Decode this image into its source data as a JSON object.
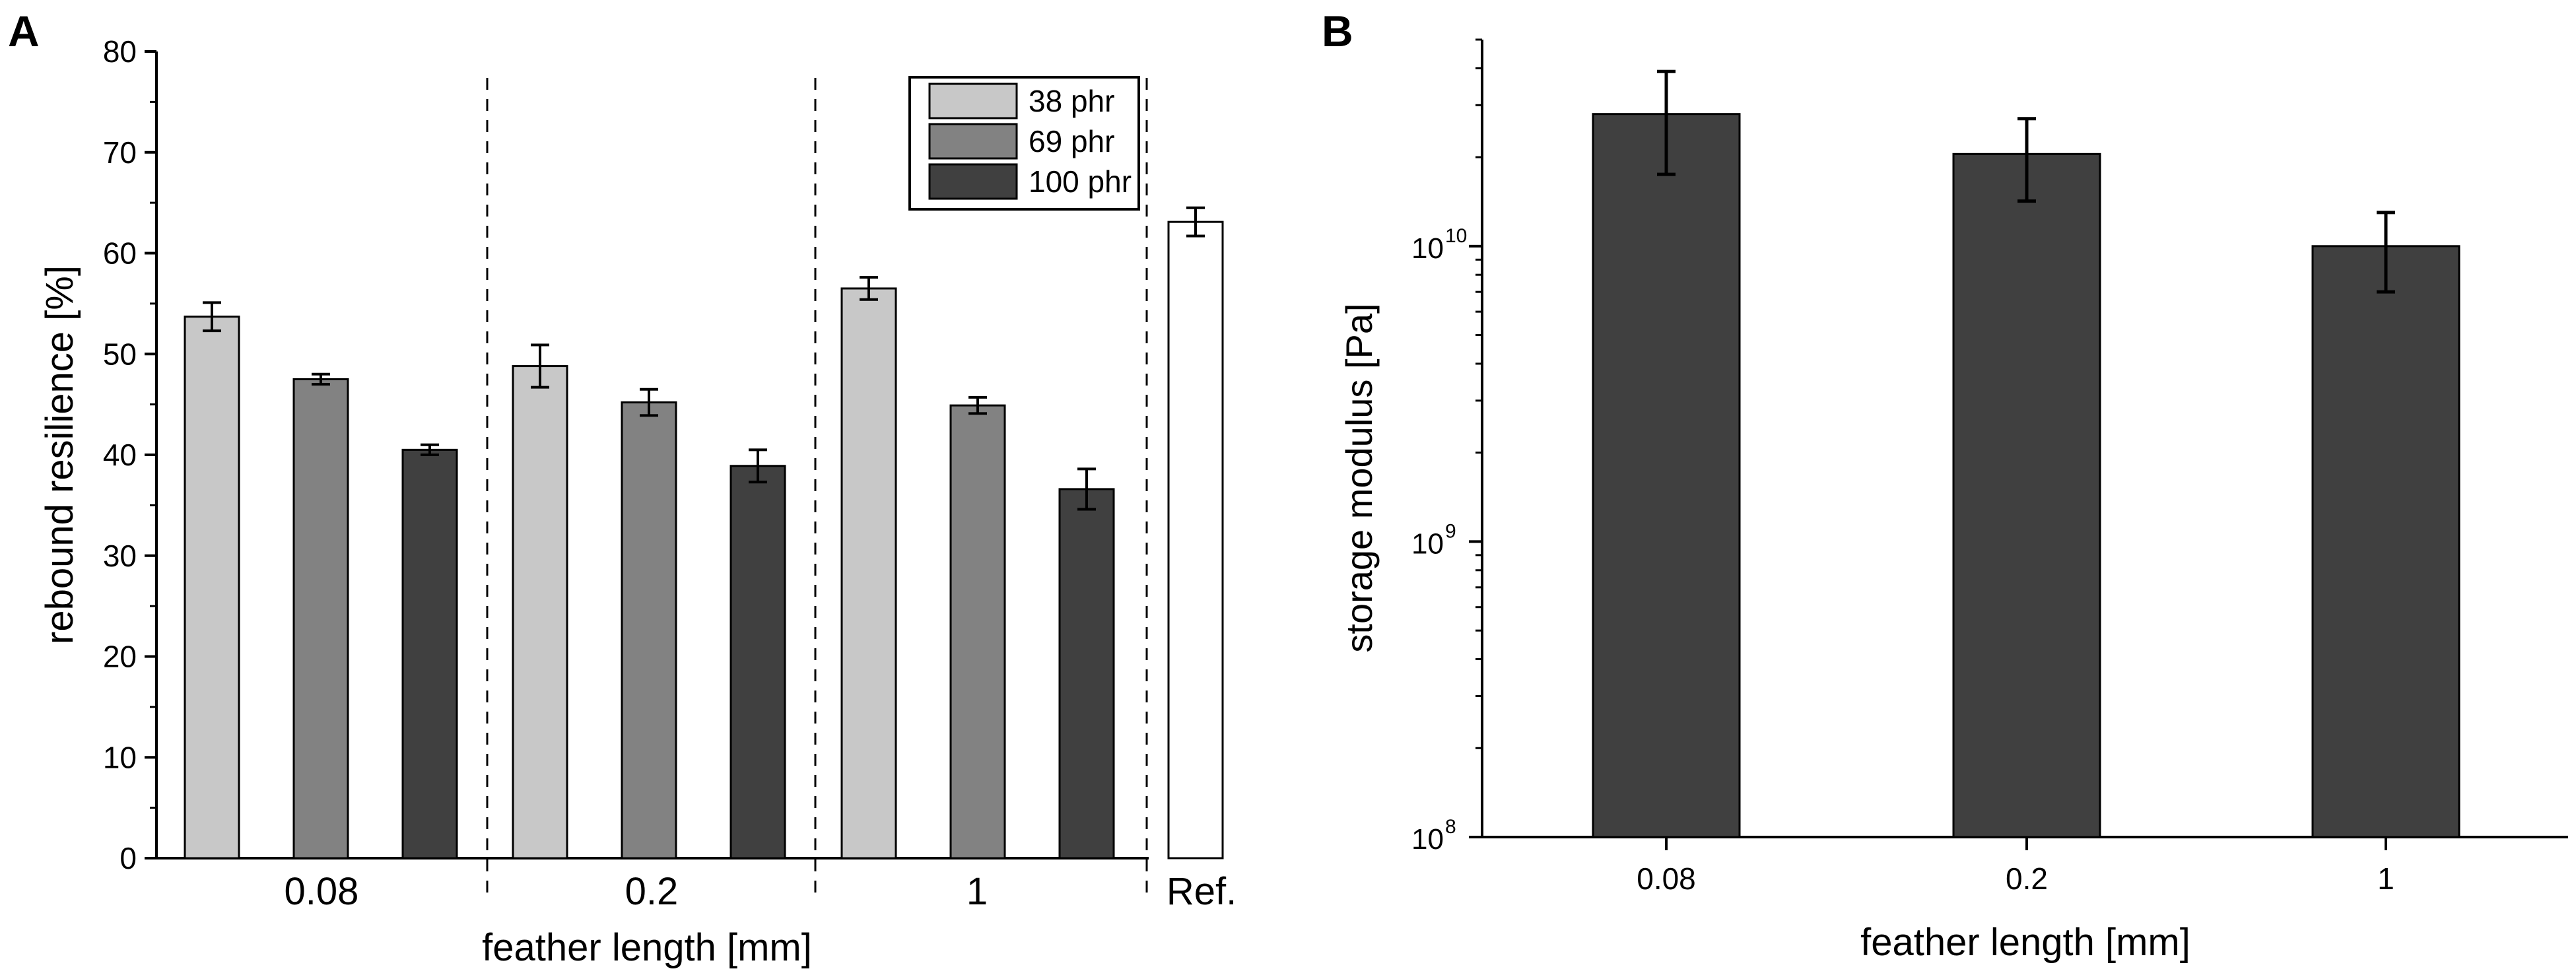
{
  "panels": {
    "a_label": "A",
    "b_label": "B"
  },
  "chart_data": [
    {
      "type": "bar",
      "panel": "A",
      "title": "",
      "xlabel": "feather length [mm]",
      "ylabel": "rebound resilience [%]",
      "ylim": [
        0,
        80
      ],
      "yticks": [
        "0",
        "10",
        "20",
        "30",
        "40",
        "50",
        "60",
        "70",
        "80"
      ],
      "groups": [
        "0.08",
        "0.2",
        "1",
        "Ref."
      ],
      "series": [
        {
          "name": "38 phr",
          "color": "#c8c8c8",
          "values": [
            53.7,
            48.8,
            56.5
          ],
          "errors": [
            1.4,
            2.1,
            1.1
          ]
        },
        {
          "name": "69 phr",
          "color": "#828282",
          "values": [
            47.5,
            45.2,
            44.9
          ],
          "errors": [
            0.5,
            1.3,
            0.8
          ]
        },
        {
          "name": "100 phr",
          "color": "#404040",
          "values": [
            40.5,
            38.9,
            36.6
          ],
          "errors": [
            0.5,
            1.6,
            2.0
          ]
        }
      ],
      "reference": {
        "label": "Ref.",
        "color": "#ffffff",
        "value": 63.1,
        "error": 1.4
      },
      "legend_position": "top-right",
      "grid": false
    },
    {
      "type": "bar",
      "panel": "B",
      "title": "",
      "xlabel": "feather length [mm]",
      "ylabel": "storage modulus [Pa]",
      "yscale": "log",
      "ylim": [
        100000000.0,
        50000000000.0
      ],
      "yticks": [
        {
          "base": "10",
          "exp": "8"
        },
        {
          "base": "10",
          "exp": "9"
        },
        {
          "base": "10",
          "exp": "10"
        }
      ],
      "categories": [
        "0.08",
        "0.2",
        "1"
      ],
      "color": "#404040",
      "values": [
        28000000000.0,
        20500000000.0,
        10000000000.0
      ],
      "error_low": [
        17500000000.0,
        14200000000.0,
        7000000000.0
      ],
      "error_high": [
        39000000000.0,
        27000000000.0,
        13000000000.0
      ],
      "grid": false
    }
  ]
}
